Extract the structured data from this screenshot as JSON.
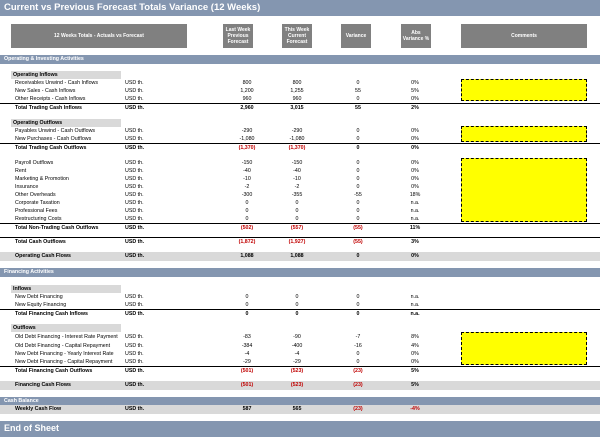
{
  "title": "Current vs Previous Forecast Totals Variance (12 Weeks)",
  "header": {
    "label": "12 Weeks Totals - Actuals vs Forecast",
    "col1": "Last Week Previous Forecast",
    "col2": "This Week Current Forecast",
    "col3": "Variance",
    "col4": "Abs Variance %",
    "comments": "Comments"
  },
  "sections": {
    "operating": "Operating & Investing Activities",
    "financing": "Financing Activities",
    "cash_balance": "Cash Balance"
  },
  "subheaders": {
    "op_inflows": "Operating Inflows",
    "op_outflows": "Operating Outflows",
    "fin_inflows": "Inflows",
    "fin_outflows": "Outflows"
  },
  "rows": {
    "r1": {
      "label": "Receivables Unwind - Cash Inflows",
      "cur": "USD th.",
      "v1": "800",
      "v2": "800",
      "v3": "0",
      "v4": "0%"
    },
    "r2": {
      "label": "New Sales - Cash Inflows",
      "cur": "USD th.",
      "v1": "1,200",
      "v2": "1,255",
      "v3": "55",
      "v4": "5%"
    },
    "r3": {
      "label": "Other Receipts - Cash Inflows",
      "cur": "USD th.",
      "v1": "960",
      "v2": "960",
      "v3": "0",
      "v4": "0%"
    },
    "r4": {
      "label": "Total Trading Cash Inflows",
      "cur": "USD th.",
      "v1": "2,960",
      "v2": "3,015",
      "v3": "55",
      "v4": "2%"
    },
    "r5": {
      "label": "Payables Unwind - Cash Outflows",
      "cur": "USD th.",
      "v1": "-290",
      "v2": "-290",
      "v3": "0",
      "v4": "0%"
    },
    "r6": {
      "label": "New Purchases - Cash Outflows",
      "cur": "USD th.",
      "v1": "-1,080",
      "v2": "-1,080",
      "v3": "0",
      "v4": "0%"
    },
    "r7": {
      "label": "Total Trading Cash Outflows",
      "cur": "USD th.",
      "v1": "(1,370)",
      "v2": "(1,370)",
      "v3": "0",
      "v4": "0%"
    },
    "r8": {
      "label": "Payroll Outflows",
      "cur": "USD th.",
      "v1": "-150",
      "v2": "-150",
      "v3": "0",
      "v4": "0%"
    },
    "r9": {
      "label": "Rent",
      "cur": "USD th.",
      "v1": "-40",
      "v2": "-40",
      "v3": "0",
      "v4": "0%"
    },
    "r10": {
      "label": "Marketing & Promotion",
      "cur": "USD th.",
      "v1": "-10",
      "v2": "-10",
      "v3": "0",
      "v4": "0%"
    },
    "r11": {
      "label": "Insurance",
      "cur": "USD th.",
      "v1": "-2",
      "v2": "-2",
      "v3": "0",
      "v4": "0%"
    },
    "r12": {
      "label": "Other Overheads",
      "cur": "USD th.",
      "v1": "-300",
      "v2": "-355",
      "v3": "-55",
      "v4": "18%"
    },
    "r13": {
      "label": "Corporate Taxation",
      "cur": "USD th.",
      "v1": "0",
      "v2": "0",
      "v3": "0",
      "v4": "n.a."
    },
    "r14": {
      "label": "Professional Fees",
      "cur": "USD th.",
      "v1": "0",
      "v2": "0",
      "v3": "0",
      "v4": "n.a."
    },
    "r15": {
      "label": "Restructuring Costs",
      "cur": "USD th.",
      "v1": "0",
      "v2": "0",
      "v3": "0",
      "v4": "n.a."
    },
    "r16": {
      "label": "Total Non-Trading Cash Outflows",
      "cur": "USD th.",
      "v1": "(502)",
      "v2": "(557)",
      "v3": "(55)",
      "v4": "11%"
    },
    "r17": {
      "label": "Total Cash Outflows",
      "cur": "USD th.",
      "v1": "(1,872)",
      "v2": "(1,927)",
      "v3": "(55)",
      "v4": "3%"
    },
    "r18": {
      "label": "Operating Cash Flows",
      "cur": "USD th.",
      "v1": "1,088",
      "v2": "1,088",
      "v3": "0",
      "v4": "0%"
    },
    "r19": {
      "label": "New Debt Financing",
      "cur": "USD th.",
      "v1": "0",
      "v2": "0",
      "v3": "0",
      "v4": "n.a."
    },
    "r20": {
      "label": "New Equity Financing",
      "cur": "USD th.",
      "v1": "0",
      "v2": "0",
      "v3": "0",
      "v4": "n.a."
    },
    "r21": {
      "label": "Total Financing Cash Inflows",
      "cur": "USD th.",
      "v1": "0",
      "v2": "0",
      "v3": "0",
      "v4": "n.a."
    },
    "r22": {
      "label": "Old Debt Financing - Interest Rate Payment",
      "cur": "USD th.",
      "v1": "-83",
      "v2": "-90",
      "v3": "-7",
      "v4": "8%"
    },
    "r23": {
      "label": "Old Debt Financing - Capital Repayment",
      "cur": "USD th.",
      "v1": "-384",
      "v2": "-400",
      "v3": "-16",
      "v4": "4%"
    },
    "r24": {
      "label": "New Debt Financing - Yearly Interest Rate",
      "cur": "USD th.",
      "v1": "-4",
      "v2": "-4",
      "v3": "0",
      "v4": "0%"
    },
    "r25": {
      "label": "New Debt Financing - Capital Repayment",
      "cur": "USD th.",
      "v1": "-29",
      "v2": "-29",
      "v3": "0",
      "v4": "0%"
    },
    "r26": {
      "label": "Total Financing Cash Outflows",
      "cur": "USD th.",
      "v1": "(501)",
      "v2": "(523)",
      "v3": "(23)",
      "v4": "5%"
    },
    "r27": {
      "label": "Financing Cash Flows",
      "cur": "USD th.",
      "v1": "(501)",
      "v2": "(523)",
      "v3": "(23)",
      "v4": "5%"
    },
    "r28": {
      "label": "Weekly Cash Flow",
      "cur": "USD th.",
      "v1": "587",
      "v2": "565",
      "v3": "(23)",
      "v4": "-4%"
    }
  },
  "footer": "End of Sheet",
  "colors": {
    "bar": "#8496b0",
    "header_box": "#808080",
    "subheader": "#d9d9d9",
    "comment_fill": "#ffff00",
    "negative": "#c00000"
  }
}
